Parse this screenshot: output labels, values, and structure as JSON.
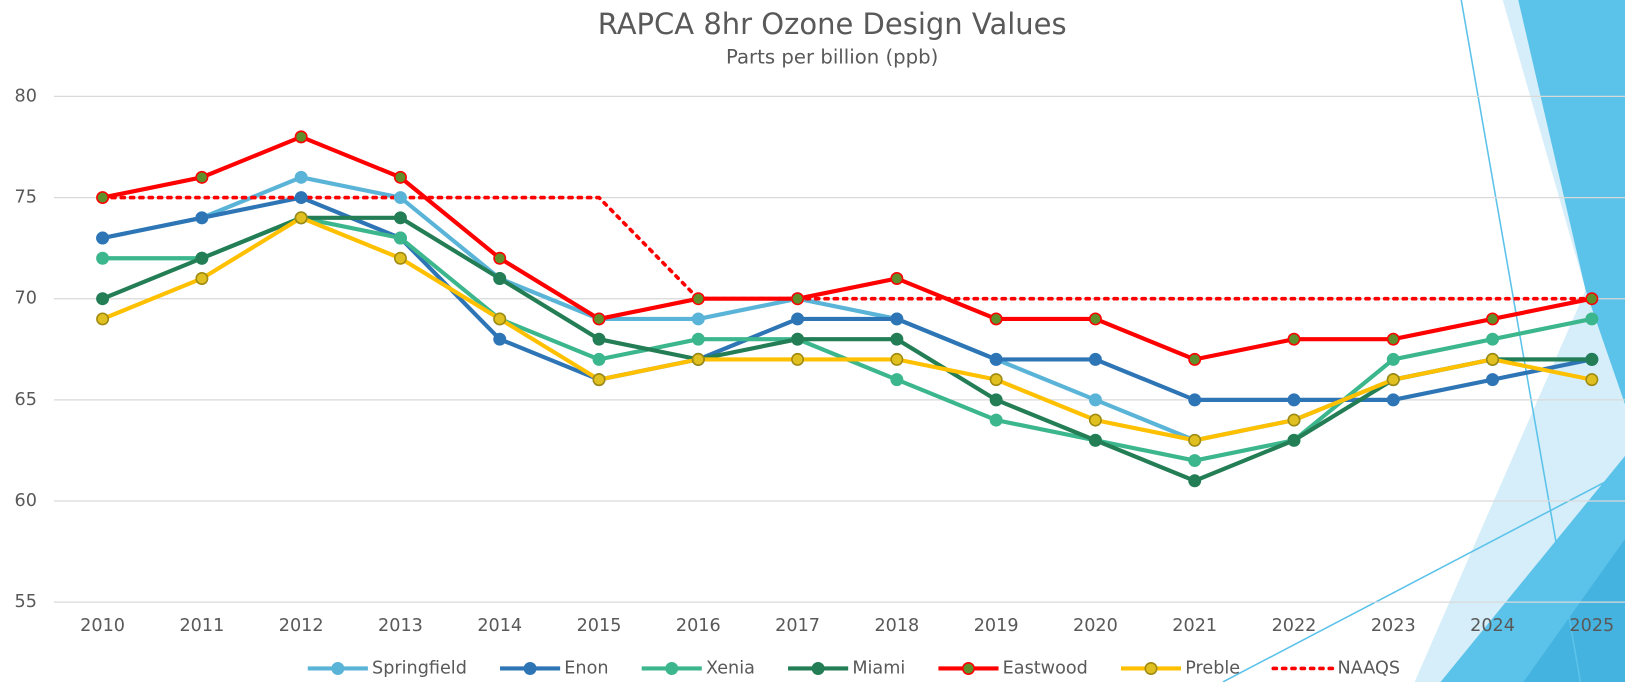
{
  "chart_data": {
    "type": "line",
    "title": "RAPCA 8hr Ozone Design Values",
    "subtitle": "Parts per billion (ppb)",
    "categories": [
      "2010",
      "2011",
      "2012",
      "2013",
      "2014",
      "2015",
      "2016",
      "2017",
      "2018",
      "2019",
      "2020",
      "2021",
      "2022",
      "2023",
      "2024",
      "2025"
    ],
    "ylim": [
      55,
      80
    ],
    "yticks": [
      55,
      60,
      65,
      70,
      75,
      80
    ],
    "grid": true,
    "legend": "bottom",
    "series": [
      {
        "name": "Springfield",
        "color": "#5ab4d8",
        "marker_fill": "#5ab4d8",
        "values": [
          73,
          74,
          76,
          75,
          71,
          69,
          69,
          70,
          69,
          67,
          65,
          63,
          64,
          66,
          67,
          67
        ]
      },
      {
        "name": "Enon",
        "color": "#2e75b6",
        "marker_fill": "#2e75b6",
        "values": [
          73,
          74,
          75,
          73,
          68,
          66,
          67,
          69,
          69,
          67,
          67,
          65,
          65,
          65,
          66,
          67
        ]
      },
      {
        "name": "Xenia",
        "color": "#3cb68c",
        "marker_fill": "#3cb68c",
        "values": [
          72,
          72,
          74,
          73,
          69,
          67,
          68,
          68,
          66,
          64,
          63,
          62,
          63,
          67,
          68,
          69
        ]
      },
      {
        "name": "Miami",
        "color": "#237d55",
        "marker_fill": "#237d55",
        "values": [
          70,
          72,
          74,
          74,
          71,
          68,
          67,
          68,
          68,
          65,
          63,
          61,
          63,
          66,
          67,
          67
        ]
      },
      {
        "name": "Eastwood",
        "color": "#ff0000",
        "marker_fill": "#5f8f2a",
        "values": [
          75,
          76,
          78,
          76,
          72,
          69,
          70,
          70,
          71,
          69,
          69,
          67,
          68,
          68,
          69,
          70
        ]
      },
      {
        "name": "Preble",
        "color": "#ffc000",
        "marker_fill": "#e0c020",
        "values": [
          69,
          71,
          74,
          72,
          69,
          66,
          67,
          67,
          67,
          66,
          64,
          63,
          64,
          66,
          67,
          66
        ]
      },
      {
        "name": "NAAQS",
        "color": "#ff0000",
        "dash": "dotted",
        "markers": false,
        "values": [
          75,
          75,
          75,
          75,
          75,
          75,
          70,
          70,
          70,
          70,
          70,
          70,
          70,
          70,
          70,
          70
        ]
      }
    ]
  }
}
